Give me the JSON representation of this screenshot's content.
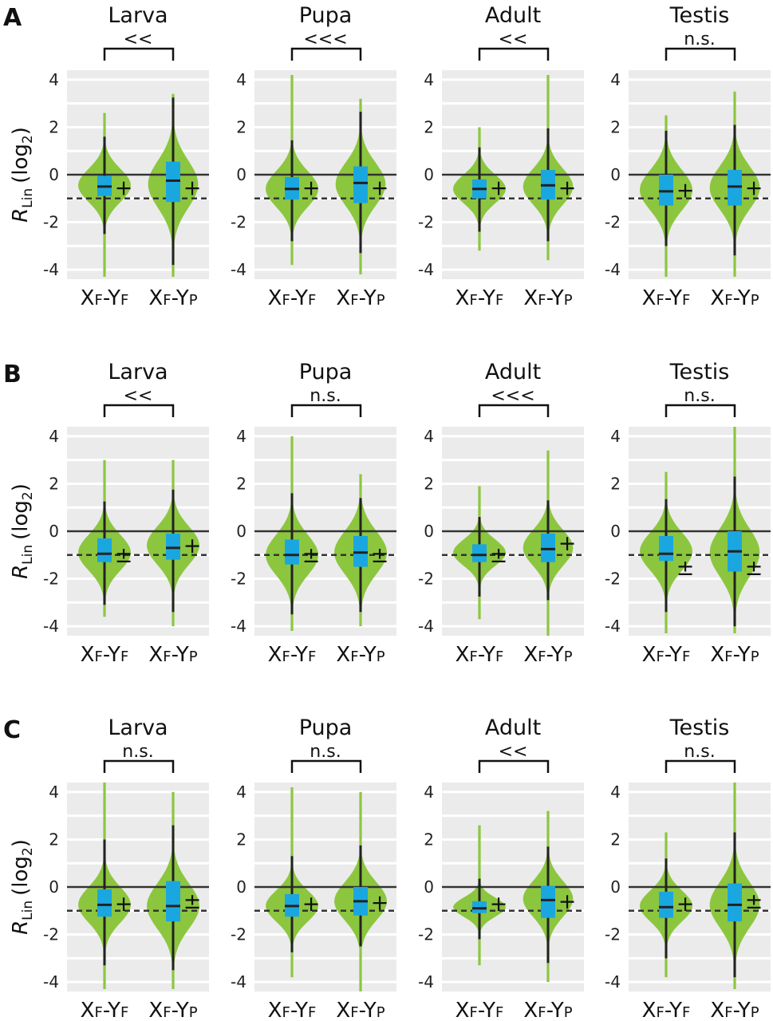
{
  "colors": {
    "violin": "#8cc63f",
    "box": "#1aa7e0",
    "panel_bg": "#ebebeb",
    "grid": "#ffffff",
    "line": "#333333"
  },
  "chart_data": {
    "type": "violin",
    "ylim": [
      -4.4,
      4.4
    ],
    "yticks": [
      "4",
      "2",
      "0",
      "-2",
      "-4"
    ],
    "ytick_values": [
      4,
      2,
      0,
      -2,
      -4
    ],
    "ylabel_main": "R",
    "ylabel_sub": "Lin",
    "ylabel_paren": "(log",
    "ylabel_exp": "2",
    "ylabel_close": ")",
    "reference_lines": {
      "solid": 0,
      "dashed": -1
    },
    "x_categories": [
      {
        "main1": "X",
        "sub1": "F",
        "dash": "-",
        "main2": "Y",
        "sub2": "F"
      },
      {
        "main1": "X",
        "sub1": "F",
        "dash": "-",
        "main2": "Y",
        "sub2": "P"
      }
    ],
    "rows": [
      {
        "label": "A",
        "panels": [
          {
            "title": "Larva",
            "sig": "<<",
            "groups": [
              {
                "median": -0.5,
                "q1": -0.9,
                "q3": -0.05,
                "wlo": -2.5,
                "whi": 1.6,
                "mark": "+",
                "mark_y": -0.55,
                "vmin": -4.3,
                "vmax": 2.6,
                "mode": -0.45,
                "spread": 0.7,
                "maxw": 1.0
              },
              {
                "median": -0.25,
                "q1": -1.15,
                "q3": 0.55,
                "wlo": -3.8,
                "whi": 3.25,
                "mark": "+",
                "mark_y": -0.55,
                "vmin": -4.3,
                "vmax": 3.4,
                "mode": -0.4,
                "spread": 1.0,
                "maxw": 0.95
              }
            ]
          },
          {
            "title": "Pupa",
            "sig": "<<<",
            "groups": [
              {
                "median": -0.6,
                "q1": -1.05,
                "q3": -0.1,
                "wlo": -2.8,
                "whi": 1.45,
                "mark": "+",
                "mark_y": -0.55,
                "vmin": -3.8,
                "vmax": 4.2,
                "mode": -0.6,
                "spread": 0.75,
                "maxw": 1.0
              },
              {
                "median": -0.35,
                "q1": -1.2,
                "q3": 0.35,
                "wlo": -3.3,
                "whi": 2.65,
                "mark": "+",
                "mark_y": -0.55,
                "vmin": -4.2,
                "vmax": 3.2,
                "mode": -0.4,
                "spread": 0.9,
                "maxw": 0.95
              }
            ]
          },
          {
            "title": "Adult",
            "sig": "<<",
            "groups": [
              {
                "median": -0.6,
                "q1": -1.0,
                "q3": -0.2,
                "wlo": -2.4,
                "whi": 1.15,
                "mark": "+",
                "mark_y": -0.55,
                "vmin": -3.2,
                "vmax": 2.0,
                "mode": -0.6,
                "spread": 0.6,
                "maxw": 1.0
              },
              {
                "median": -0.45,
                "q1": -1.05,
                "q3": 0.2,
                "wlo": -2.8,
                "whi": 1.95,
                "mark": "+",
                "mark_y": -0.55,
                "vmin": -3.6,
                "vmax": 4.2,
                "mode": -0.5,
                "spread": 0.75,
                "maxw": 0.95
              }
            ]
          },
          {
            "title": "Testis",
            "sig": "n.s.",
            "groups": [
              {
                "median": -0.7,
                "q1": -1.3,
                "q3": 0.0,
                "wlo": -3.0,
                "whi": 1.85,
                "mark": "+",
                "mark_y": -0.65,
                "vmin": -4.3,
                "vmax": 2.5,
                "mode": -0.65,
                "spread": 0.85,
                "maxw": 1.0
              },
              {
                "median": -0.5,
                "q1": -1.3,
                "q3": 0.2,
                "wlo": -3.4,
                "whi": 2.1,
                "mark": "+",
                "mark_y": -0.55,
                "vmin": -4.3,
                "vmax": 3.5,
                "mode": -0.55,
                "spread": 0.9,
                "maxw": 0.95
              }
            ]
          }
        ]
      },
      {
        "label": "B",
        "panels": [
          {
            "title": "Larva",
            "sig": "<<",
            "groups": [
              {
                "median": -0.95,
                "q1": -1.3,
                "q3": -0.3,
                "wlo": -3.1,
                "whi": 1.25,
                "mark": "±",
                "mark_y": -1.0,
                "vmin": -3.6,
                "vmax": 3.0,
                "mode": -0.9,
                "spread": 0.75,
                "maxw": 1.0
              },
              {
                "median": -0.7,
                "q1": -1.2,
                "q3": -0.1,
                "wlo": -3.4,
                "whi": 1.75,
                "mark": "+",
                "mark_y": -0.6,
                "vmin": -4.0,
                "vmax": 3.0,
                "mode": -0.6,
                "spread": 0.8,
                "maxw": 1.0
              }
            ]
          },
          {
            "title": "Pupa",
            "sig": "n.s.",
            "groups": [
              {
                "median": -1.0,
                "q1": -1.4,
                "q3": -0.35,
                "wlo": -3.5,
                "whi": 1.6,
                "mark": "±",
                "mark_y": -1.0,
                "vmin": -4.2,
                "vmax": 4.0,
                "mode": -1.0,
                "spread": 0.85,
                "maxw": 1.0
              },
              {
                "median": -0.9,
                "q1": -1.5,
                "q3": -0.2,
                "wlo": -3.4,
                "whi": 1.4,
                "mark": "±",
                "mark_y": -1.0,
                "vmin": -4.0,
                "vmax": 2.4,
                "mode": -0.9,
                "spread": 0.9,
                "maxw": 1.0
              }
            ]
          },
          {
            "title": "Adult",
            "sig": "<<<",
            "groups": [
              {
                "median": -1.0,
                "q1": -1.3,
                "q3": -0.55,
                "wlo": -2.75,
                "whi": 0.6,
                "mark": "±",
                "mark_y": -1.0,
                "vmin": -3.7,
                "vmax": 1.9,
                "mode": -0.9,
                "spread": 0.55,
                "maxw": 1.0
              },
              {
                "median": -0.75,
                "q1": -1.3,
                "q3": -0.1,
                "wlo": -2.9,
                "whi": 1.3,
                "mark": "+",
                "mark_y": -0.5,
                "vmin": -4.4,
                "vmax": 3.4,
                "mode": -0.7,
                "spread": 0.75,
                "maxw": 0.95
              }
            ]
          },
          {
            "title": "Testis",
            "sig": "n.s.",
            "groups": [
              {
                "median": -0.95,
                "q1": -1.25,
                "q3": -0.2,
                "wlo": -3.4,
                "whi": 1.35,
                "mark": "±",
                "mark_y": -1.55,
                "vmin": -4.3,
                "vmax": 2.5,
                "mode": -0.85,
                "spread": 0.8,
                "maxw": 1.0
              },
              {
                "median": -0.85,
                "q1": -1.7,
                "q3": 0.0,
                "wlo": -4.0,
                "whi": 2.3,
                "mark": "±",
                "mark_y": -1.55,
                "vmin": -4.3,
                "vmax": 4.4,
                "mode": -0.9,
                "spread": 1.0,
                "maxw": 0.95
              }
            ]
          }
        ]
      },
      {
        "label": "C",
        "panels": [
          {
            "title": "Larva",
            "sig": "n.s.",
            "groups": [
              {
                "median": -0.75,
                "q1": -1.25,
                "q3": -0.1,
                "wlo": -3.3,
                "whi": 2.0,
                "mark": "+",
                "mark_y": -0.7,
                "vmin": -4.3,
                "vmax": 4.4,
                "mode": -0.75,
                "spread": 0.75,
                "maxw": 1.0
              },
              {
                "median": -0.8,
                "q1": -1.45,
                "q3": 0.25,
                "wlo": -3.5,
                "whi": 2.6,
                "mark": "±",
                "mark_y": -0.6,
                "vmin": -4.3,
                "vmax": 4.0,
                "mode": -0.8,
                "spread": 0.95,
                "maxw": 1.0
              }
            ]
          },
          {
            "title": "Pupa",
            "sig": "n.s.",
            "groups": [
              {
                "median": -0.8,
                "q1": -1.25,
                "q3": -0.3,
                "wlo": -2.75,
                "whi": 1.3,
                "mark": "+",
                "mark_y": -0.7,
                "vmin": -3.8,
                "vmax": 4.2,
                "mode": -0.8,
                "spread": 0.65,
                "maxw": 1.0
              },
              {
                "median": -0.6,
                "q1": -1.2,
                "q3": 0.0,
                "wlo": -2.5,
                "whi": 1.75,
                "mark": "+",
                "mark_y": -0.65,
                "vmin": -4.4,
                "vmax": 4.0,
                "mode": -0.6,
                "spread": 0.8,
                "maxw": 1.0
              }
            ]
          },
          {
            "title": "Adult",
            "sig": "<<",
            "groups": [
              {
                "median": -0.9,
                "q1": -1.1,
                "q3": -0.6,
                "wlo": -2.2,
                "whi": 0.35,
                "mark": "+",
                "mark_y": -0.7,
                "vmin": -3.3,
                "vmax": 2.6,
                "mode": -0.85,
                "spread": 0.4,
                "maxw": 1.0
              },
              {
                "median": -0.55,
                "q1": -1.3,
                "q3": 0.05,
                "wlo": -3.2,
                "whi": 1.7,
                "mark": "+",
                "mark_y": -0.6,
                "vmin": -4.0,
                "vmax": 3.2,
                "mode": -0.5,
                "spread": 0.75,
                "maxw": 0.95
              }
            ]
          },
          {
            "title": "Testis",
            "sig": "n.s.",
            "groups": [
              {
                "median": -0.85,
                "q1": -1.3,
                "q3": -0.2,
                "wlo": -3.0,
                "whi": 1.2,
                "mark": "+",
                "mark_y": -0.7,
                "vmin": -3.8,
                "vmax": 2.3,
                "mode": -0.8,
                "spread": 0.65,
                "maxw": 1.0
              },
              {
                "median": -0.75,
                "q1": -1.45,
                "q3": 0.15,
                "wlo": -3.8,
                "whi": 2.3,
                "mark": "±",
                "mark_y": -0.6,
                "vmin": -4.3,
                "vmax": 4.4,
                "mode": -0.75,
                "spread": 0.95,
                "maxw": 0.95
              }
            ]
          }
        ]
      }
    ]
  }
}
